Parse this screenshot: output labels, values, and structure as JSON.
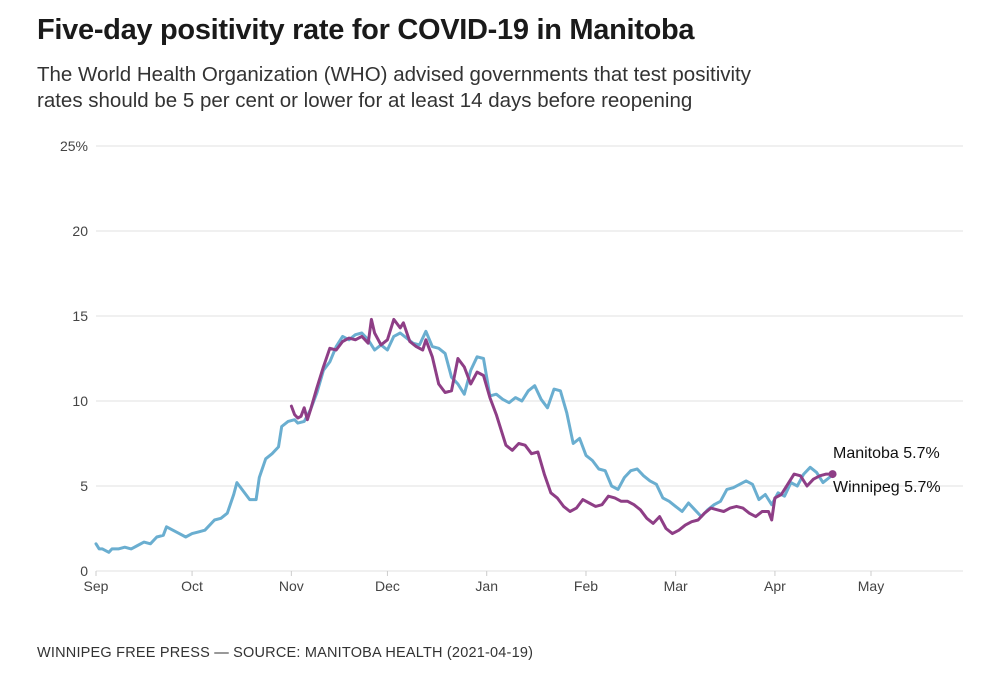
{
  "header": {
    "title": "Five-day positivity rate for COVID-19 in Manitoba",
    "subtitle_lines": [
      "The World Health Organization (WHO) advised governments that test positivity",
      "rates should be 5 per cent or lower for at least 14 days before reopening"
    ]
  },
  "footer": {
    "credit": "WINNIPEG FREE PRESS — SOURCE: MANITOBA HEALTH (2021-04-19)"
  },
  "colors": {
    "manitoba": "#6aaed0",
    "winnipeg": "#8e3e86",
    "grid": "#e6e6e6",
    "axis_text": "#444444"
  },
  "chart_data": {
    "type": "line",
    "title": "Five-day positivity rate for COVID-19 in Manitoba",
    "xlabel": "",
    "ylabel": "",
    "x_unit": "days since 2020-09-01",
    "xlim": [
      0,
      280
    ],
    "ylim": [
      0,
      25
    ],
    "grid": true,
    "y_ticks": [
      {
        "value": 0,
        "label": "0"
      },
      {
        "value": 5,
        "label": "5"
      },
      {
        "value": 10,
        "label": "10"
      },
      {
        "value": 15,
        "label": "15"
      },
      {
        "value": 20,
        "label": "20"
      },
      {
        "value": 25,
        "label": "25%"
      }
    ],
    "x_ticks": [
      {
        "value": 0,
        "label": "Sep"
      },
      {
        "value": 30,
        "label": "Oct"
      },
      {
        "value": 61,
        "label": "Nov"
      },
      {
        "value": 91,
        "label": "Dec"
      },
      {
        "value": 122,
        "label": "Jan"
      },
      {
        "value": 153,
        "label": "Feb"
      },
      {
        "value": 181,
        "label": "Mar"
      },
      {
        "value": 212,
        "label": "Apr"
      },
      {
        "value": 242,
        "label": "May"
      }
    ],
    "legend": "end-labels",
    "series": [
      {
        "name": "Manitoba",
        "end_label": "Manitoba 5.7%",
        "color_key": "manitoba",
        "x": [
          0,
          1,
          2,
          4,
          5,
          7,
          9,
          11,
          13,
          15,
          17,
          19,
          21,
          22,
          24,
          26,
          28,
          30,
          32,
          34,
          35,
          37,
          39,
          41,
          43,
          44,
          46,
          48,
          50,
          51,
          53,
          55,
          57,
          58,
          60,
          62,
          63,
          65,
          67,
          69,
          71,
          73,
          75,
          77,
          79,
          81,
          83,
          85,
          87,
          89,
          91,
          93,
          95,
          97,
          99,
          101,
          103,
          105,
          107,
          109,
          111,
          113,
          115,
          117,
          119,
          121,
          123,
          125,
          127,
          129,
          131,
          133,
          135,
          137,
          139,
          141,
          143,
          145,
          147,
          149,
          151,
          153,
          155,
          157,
          159,
          161,
          163,
          165,
          167,
          169,
          171,
          173,
          175,
          177,
          179,
          181,
          183,
          185,
          187,
          189,
          191,
          193,
          195,
          197,
          199,
          201,
          203,
          205,
          207,
          209,
          211,
          213,
          215,
          217,
          219,
          221,
          223,
          225,
          227,
          229,
          230
        ],
        "values": [
          1.6,
          1.3,
          1.3,
          1.1,
          1.3,
          1.3,
          1.4,
          1.3,
          1.5,
          1.7,
          1.6,
          2.0,
          2.1,
          2.6,
          2.4,
          2.2,
          2.0,
          2.2,
          2.3,
          2.4,
          2.6,
          3.0,
          3.1,
          3.4,
          4.5,
          5.2,
          4.7,
          4.2,
          4.2,
          5.5,
          6.6,
          6.9,
          7.3,
          8.5,
          8.8,
          8.9,
          8.7,
          8.8,
          9.5,
          10.5,
          11.8,
          12.3,
          13.2,
          13.8,
          13.6,
          13.9,
          14.0,
          13.6,
          13.0,
          13.3,
          13.0,
          13.8,
          14.0,
          13.7,
          13.4,
          13.3,
          14.1,
          13.2,
          13.1,
          12.8,
          11.4,
          11.0,
          10.4,
          11.8,
          12.6,
          12.5,
          10.3,
          10.4,
          10.1,
          9.9,
          10.2,
          10.0,
          10.6,
          10.9,
          10.1,
          9.6,
          10.7,
          10.6,
          9.3,
          7.5,
          7.8,
          6.8,
          6.5,
          6.0,
          5.9,
          5.0,
          4.8,
          5.5,
          5.9,
          6.0,
          5.6,
          5.3,
          5.1,
          4.3,
          4.1,
          3.8,
          3.5,
          4.0,
          3.6,
          3.2,
          3.6,
          3.9,
          4.1,
          4.8,
          4.9,
          5.1,
          5.3,
          5.1,
          4.2,
          4.5,
          3.9,
          4.6,
          4.4,
          5.2,
          5.0,
          5.7,
          6.1,
          5.8,
          5.2,
          5.5,
          5.7
        ]
      },
      {
        "name": "Winnipeg",
        "end_label": "Winnipeg 5.7%",
        "color_key": "winnipeg",
        "x": [
          61,
          62,
          63,
          64,
          65,
          66,
          67,
          69,
          71,
          73,
          75,
          77,
          79,
          81,
          83,
          85,
          86,
          87,
          89,
          91,
          93,
          95,
          96,
          98,
          100,
          102,
          103,
          105,
          107,
          109,
          111,
          113,
          115,
          117,
          119,
          121,
          123,
          124,
          125,
          126,
          128,
          130,
          132,
          134,
          136,
          138,
          140,
          142,
          144,
          146,
          148,
          150,
          152,
          154,
          156,
          158,
          160,
          162,
          164,
          166,
          168,
          170,
          172,
          174,
          176,
          178,
          180,
          182,
          184,
          186,
          188,
          190,
          192,
          194,
          196,
          198,
          200,
          202,
          204,
          206,
          208,
          210,
          211,
          212,
          214,
          216,
          218,
          220,
          222,
          224,
          226,
          228,
          230
        ],
        "values": [
          9.7,
          9.2,
          9.0,
          9.1,
          9.6,
          8.9,
          9.5,
          10.8,
          12.0,
          13.1,
          13.0,
          13.5,
          13.7,
          13.6,
          13.8,
          13.4,
          14.8,
          14.0,
          13.3,
          13.6,
          14.8,
          14.3,
          14.6,
          13.5,
          13.2,
          13.0,
          13.6,
          12.6,
          11.0,
          10.5,
          10.6,
          12.5,
          12.0,
          11.0,
          11.7,
          11.5,
          10.2,
          9.7,
          9.2,
          8.6,
          7.4,
          7.1,
          7.5,
          7.4,
          6.9,
          7.0,
          5.7,
          4.6,
          4.3,
          3.8,
          3.5,
          3.7,
          4.2,
          4.0,
          3.8,
          3.9,
          4.4,
          4.3,
          4.1,
          4.1,
          3.9,
          3.6,
          3.1,
          2.8,
          3.2,
          2.5,
          2.2,
          2.4,
          2.7,
          2.9,
          3.0,
          3.4,
          3.7,
          3.6,
          3.5,
          3.7,
          3.8,
          3.7,
          3.4,
          3.2,
          3.5,
          3.5,
          3.0,
          4.3,
          4.5,
          5.1,
          5.7,
          5.6,
          5.0,
          5.4,
          5.6,
          5.7,
          5.7
        ]
      }
    ],
    "annotations": [
      {
        "text": "Manitoba 5.7%",
        "series": "Manitoba"
      },
      {
        "text": "Winnipeg 5.7%",
        "series": "Winnipeg"
      }
    ]
  }
}
